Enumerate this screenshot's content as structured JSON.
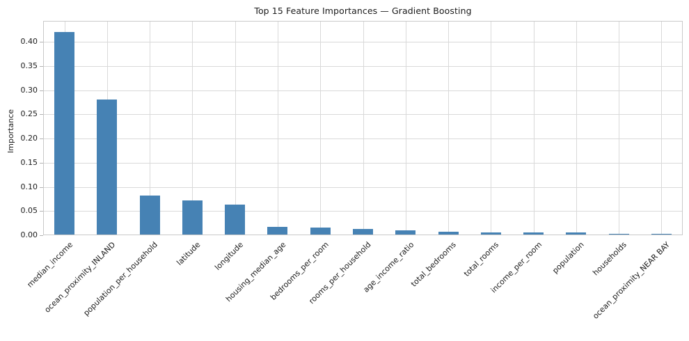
{
  "chart_data": {
    "type": "bar",
    "title": "Top 15 Feature Importances — Gradient Boosting",
    "ylabel": "Importance",
    "xlabel": "",
    "categories": [
      "median_income",
      "ocean_proximity_INLAND",
      "population_per_household",
      "latitude",
      "longitude",
      "housing_median_age",
      "bedrooms_per_room",
      "rooms_per_household",
      "age_income_ratio",
      "total_bedrooms",
      "total_rooms",
      "income_per_room",
      "population",
      "households",
      "ocean_proximity_NEAR BAY"
    ],
    "values": [
      0.42,
      0.28,
      0.08,
      0.071,
      0.062,
      0.016,
      0.015,
      0.011,
      0.009,
      0.006,
      0.004,
      0.004,
      0.004,
      0.002,
      0.002
    ],
    "yticks": [
      0.0,
      0.05,
      0.1,
      0.15,
      0.2,
      0.25,
      0.3,
      0.35,
      0.4
    ],
    "ytick_labels": [
      "0.00",
      "0.05",
      "0.10",
      "0.15",
      "0.20",
      "0.25",
      "0.30",
      "0.35",
      "0.40"
    ],
    "ylim": [
      0,
      0.4438
    ],
    "grid": true,
    "legend_position": "none",
    "colors": {
      "bar": "#4682b4",
      "grid": "#d9d9d9",
      "spine": "#c9c9c9",
      "tick": "#b3b3b3",
      "text": "#1a1a1a"
    }
  }
}
